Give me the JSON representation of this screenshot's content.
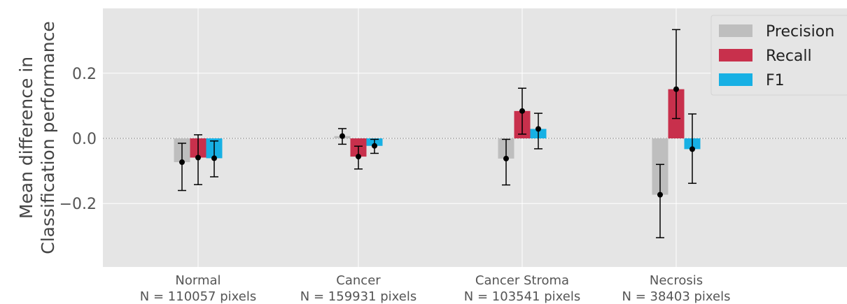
{
  "chart_data": {
    "type": "bar",
    "title": "",
    "xlabel": "",
    "ylabel_lines": [
      "Mean difference in",
      "Classification performance"
    ],
    "ylim": [
      -0.4,
      0.4
    ],
    "yticks": [
      -0.2,
      0.0,
      0.2
    ],
    "ytick_labels": [
      "−0.2",
      "0.0",
      "0.2"
    ],
    "categories": [
      {
        "name": "Normal",
        "sub": "N = 110057 pixels"
      },
      {
        "name": "Cancer",
        "sub": "N = 159931 pixels"
      },
      {
        "name": "Cancer Stroma",
        "sub": "N = 103541 pixels"
      },
      {
        "name": "Necrosis",
        "sub": "N = 38403 pixels"
      }
    ],
    "series": [
      {
        "name": "Precision",
        "color": "#bebebe",
        "values": [
          -0.073,
          0.007,
          -0.062,
          -0.173
        ],
        "err_low": [
          -0.16,
          -0.018,
          -0.143,
          -0.305
        ],
        "err_high": [
          -0.015,
          0.03,
          -0.003,
          -0.08
        ]
      },
      {
        "name": "Recall",
        "color": "#c8304c",
        "values": [
          -0.059,
          -0.056,
          0.084,
          0.151
        ],
        "err_low": [
          -0.142,
          -0.094,
          0.013,
          0.061
        ],
        "err_high": [
          0.011,
          -0.024,
          0.154,
          0.334
        ]
      },
      {
        "name": "F1",
        "color": "#17b0e4",
        "values": [
          -0.061,
          -0.023,
          0.029,
          -0.033
        ],
        "err_low": [
          -0.118,
          -0.046,
          -0.032,
          -0.138
        ],
        "err_high": [
          -0.008,
          -0.003,
          0.077,
          0.075
        ]
      }
    ],
    "grid": true,
    "zero_line": true,
    "legend_position": "top-right"
  }
}
